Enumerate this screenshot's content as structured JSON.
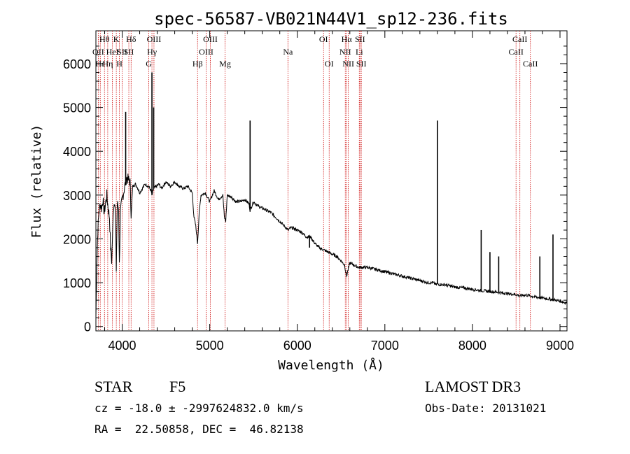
{
  "chart_data": {
    "type": "line",
    "title": "spec-56587-VB021N44V1_sp12-236.fits",
    "xlabel": "Wavelength (Å)",
    "ylabel": "Flux (relative)",
    "xlim": [
      3700,
      9080
    ],
    "ylim": [
      -100,
      6750
    ],
    "xticks": [
      4000,
      5000,
      6000,
      7000,
      8000,
      9000
    ],
    "xtick_labels": [
      "4000",
      "5000",
      "6000",
      "7000",
      "8000",
      "9000"
    ],
    "yticks": [
      0,
      1000,
      2000,
      3000,
      4000,
      5000,
      6000
    ],
    "ytick_labels": [
      "0",
      "1000",
      "2000",
      "3000",
      "4000",
      "5000",
      "6000"
    ],
    "spectrum": {
      "name": "flux",
      "x": [
        3700,
        3712,
        3722,
        3735,
        3750,
        3765,
        3780,
        3795,
        3810,
        3825,
        3840,
        3855,
        3868,
        3880,
        3889,
        3900,
        3915,
        3925,
        3933,
        3945,
        3960,
        3968,
        3980,
        4000,
        4030,
        4050,
        4090,
        4102,
        4120,
        4150,
        4180,
        4200,
        4230,
        4260,
        4300,
        4330,
        4340,
        4360,
        4390,
        4420,
        4450,
        4480,
        4500,
        4550,
        4600,
        4650,
        4700,
        4750,
        4800,
        4820,
        4840,
        4861,
        4880,
        4900,
        4950,
        5000,
        5050,
        5100,
        5150,
        5167,
        5183,
        5200,
        5250,
        5300,
        5350,
        5400,
        5450,
        5460,
        5480,
        5500,
        5550,
        5600,
        5650,
        5700,
        5750,
        5800,
        5850,
        5895,
        5920,
        5950,
        6000,
        6050,
        6100,
        6150,
        6200,
        6250,
        6300,
        6350,
        6400,
        6450,
        6500,
        6540,
        6563,
        6580,
        6600,
        6650,
        6700,
        6750,
        6800,
        6900,
        7000,
        7100,
        7200,
        7300,
        7400,
        7500,
        7550,
        7590,
        7600,
        7620,
        7700,
        7800,
        7900,
        8000,
        8100,
        8200,
        8300,
        8400,
        8500,
        8542,
        8600,
        8662,
        8700,
        8800,
        8900,
        9000,
        9040,
        9050,
        9080
      ],
      "y": [
        200,
        1500,
        2200,
        2600,
        2800,
        2700,
        2900,
        2600,
        2800,
        3000,
        2700,
        2500,
        1800,
        1500,
        2000,
        2700,
        2900,
        2500,
        1300,
        2800,
        2700,
        1400,
        2600,
        2900,
        3200,
        3400,
        3300,
        2500,
        3200,
        3250,
        3150,
        3050,
        3150,
        3250,
        3200,
        3100,
        3000,
        3150,
        3200,
        3250,
        3150,
        3250,
        3300,
        3200,
        3300,
        3200,
        3150,
        3200,
        3050,
        2500,
        2300,
        1900,
        2600,
        3000,
        3050,
        2850,
        3100,
        2900,
        3000,
        2500,
        2400,
        3000,
        2950,
        2850,
        2850,
        2900,
        2800,
        2650,
        2750,
        2850,
        2750,
        2700,
        2650,
        2600,
        2500,
        2400,
        2300,
        2200,
        2250,
        2250,
        2200,
        2150,
        2050,
        2050,
        1900,
        1800,
        1750,
        1700,
        1650,
        1600,
        1500,
        1400,
        1150,
        1300,
        1450,
        1400,
        1350,
        1350,
        1350,
        1300,
        1250,
        1200,
        1150,
        1100,
        1050,
        1000,
        1000,
        950,
        980,
        960,
        950,
        900,
        880,
        850,
        820,
        800,
        780,
        750,
        730,
        700,
        720,
        700,
        680,
        650,
        620,
        580,
        560,
        550,
        540
      ],
      "peaks": [
        {
          "x": 4040,
          "y": 4900
        },
        {
          "x": 4340,
          "y": 5800
        },
        {
          "x": 4360,
          "y": 5000
        },
        {
          "x": 5461,
          "y": 4700
        },
        {
          "x": 6140,
          "y": 1800
        },
        {
          "x": 7600,
          "y": 4700
        },
        {
          "x": 8100,
          "y": 2200
        },
        {
          "x": 8200,
          "y": 1700
        },
        {
          "x": 8300,
          "y": 1600
        },
        {
          "x": 8770,
          "y": 1600
        },
        {
          "x": 8920,
          "y": 2100
        }
      ]
    },
    "line_markers": [
      {
        "label": "Hθ",
        "x": 3798,
        "row": 0
      },
      {
        "label": "OII",
        "x": 3727,
        "row": 1
      },
      {
        "label": "Hε",
        "x": 3750,
        "row": 2
      },
      {
        "label": "Hη",
        "x": 3835,
        "row": 2
      },
      {
        "label": "HeI",
        "x": 3889,
        "row": 1
      },
      {
        "label": "K",
        "x": 3933,
        "row": 0
      },
      {
        "label": "SII",
        "x": 4000,
        "row": 1
      },
      {
        "label": "H",
        "x": 3968,
        "row": 2
      },
      {
        "label": "Hδ",
        "x": 4102,
        "row": 0
      },
      {
        "label": "SII",
        "x": 4076,
        "row": 1
      },
      {
        "label": "OIII",
        "x": 4363,
        "row": 0
      },
      {
        "label": "Hγ",
        "x": 4340,
        "row": 1
      },
      {
        "label": "G",
        "x": 4304,
        "row": 2
      },
      {
        "label": "OIII",
        "x": 5007,
        "row": 0
      },
      {
        "label": "OIII",
        "x": 4959,
        "row": 1
      },
      {
        "label": "Hβ",
        "x": 4861,
        "row": 2
      },
      {
        "label": "Mg",
        "x": 5175,
        "row": 2
      },
      {
        "label": "Na",
        "x": 5893,
        "row": 1
      },
      {
        "label": "OI",
        "x": 6300,
        "row": 0
      },
      {
        "label": "OI",
        "x": 6364,
        "row": 2
      },
      {
        "label": "Hα",
        "x": 6563,
        "row": 0
      },
      {
        "label": "NII",
        "x": 6548,
        "row": 1
      },
      {
        "label": "NII",
        "x": 6583,
        "row": 2
      },
      {
        "label": "SII",
        "x": 6716,
        "row": 0
      },
      {
        "label": "Li",
        "x": 6708,
        "row": 1
      },
      {
        "label": "SII",
        "x": 6731,
        "row": 2
      },
      {
        "label": "CaII",
        "x": 8542,
        "row": 0
      },
      {
        "label": "CaII",
        "x": 8498,
        "row": 1
      },
      {
        "label": "CaII",
        "x": 8662,
        "row": 2
      }
    ]
  },
  "info": {
    "object_class": "STAR",
    "subclass": "F5",
    "survey": "LAMOST DR3",
    "redshift": "cz = -18.0 ± -2997624832.0 km/s",
    "obs_date": "Obs-Date: 20131021",
    "coords": "RA =  22.50858, DEC =  46.82138"
  },
  "colors": {
    "spectrum": "#000000",
    "marker": "#cc0000",
    "axis": "#000000"
  }
}
